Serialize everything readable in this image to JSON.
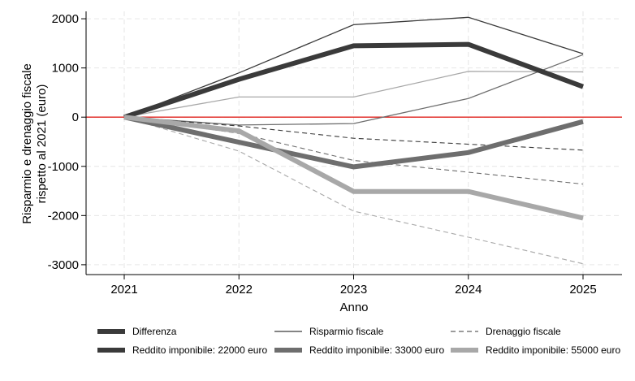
{
  "chart_data": {
    "type": "line",
    "xlabel": "Anno",
    "ylabel_lines": [
      "Risparmio e drenaggio fiscale",
      "rispetto al 2021 (euro)"
    ],
    "x": [
      2021,
      2022,
      2023,
      2024,
      2025
    ],
    "x_ticks": [
      "2021",
      "2022",
      "2023",
      "2024",
      "2025"
    ],
    "y_ticks": [
      2000,
      1000,
      0,
      -1000,
      -2000,
      -3000
    ],
    "y_tick_labels": [
      "2000",
      "1000",
      "0",
      "-1000",
      "-2000",
      "-3000"
    ],
    "ylim": [
      -3200,
      2150
    ],
    "grid": true,
    "reference_line": {
      "y": 0,
      "color": "#e0201b"
    },
    "legend": {
      "placement": "bottom",
      "entries": [
        {
          "label": "Differenza",
          "style": "thick",
          "color": "#3a3a3a"
        },
        {
          "label": "Risparmio fiscale",
          "style": "thin",
          "color": "#3a3a3a"
        },
        {
          "label": "Drenaggio fiscale",
          "style": "dashed",
          "color": "#3a3a3a"
        },
        {
          "label": "Reddito imponibile: 22000 euro",
          "style": "thick",
          "color": "#3a3a3a"
        },
        {
          "label": "Reddito imponibile: 33000 euro",
          "style": "thick",
          "color": "#6e6e6e"
        },
        {
          "label": "Reddito imponibile: 55000 euro",
          "style": "thick",
          "color": "#a8a8a8"
        }
      ]
    },
    "series": [
      {
        "income": "22000",
        "measure": "Risparmio fiscale",
        "style": "thin",
        "color": "#3a3a3a",
        "values": [
          0,
          900,
          1880,
          2030,
          1290
        ]
      },
      {
        "income": "22000",
        "measure": "Drenaggio fiscale",
        "style": "dashed",
        "color": "#3a3a3a",
        "values": [
          0,
          -180,
          -430,
          -550,
          -670
        ]
      },
      {
        "income": "22000",
        "measure": "Differenza",
        "style": "thick",
        "color": "#3a3a3a",
        "values": [
          0,
          770,
          1450,
          1480,
          620
        ]
      },
      {
        "income": "33000",
        "measure": "Risparmio fiscale",
        "style": "thin",
        "color": "#6e6e6e",
        "values": [
          0,
          -160,
          -130,
          380,
          1270
        ]
      },
      {
        "income": "33000",
        "measure": "Drenaggio fiscale",
        "style": "dashed",
        "color": "#6e6e6e",
        "values": [
          0,
          -330,
          -880,
          -1120,
          -1360
        ]
      },
      {
        "income": "33000",
        "measure": "Differenza",
        "style": "thick",
        "color": "#6e6e6e",
        "values": [
          0,
          -510,
          -1010,
          -720,
          -90
        ]
      },
      {
        "income": "55000",
        "measure": "Risparmio fiscale",
        "style": "thin",
        "color": "#a8a8a8",
        "values": [
          0,
          410,
          410,
          930,
          920
        ]
      },
      {
        "income": "55000",
        "measure": "Drenaggio fiscale",
        "style": "dashed",
        "color": "#a8a8a8",
        "values": [
          0,
          -690,
          -1910,
          -2440,
          -2980
        ]
      },
      {
        "income": "55000",
        "measure": "Differenza",
        "style": "thick",
        "color": "#a8a8a8",
        "values": [
          0,
          -280,
          -1510,
          -1510,
          -2050
        ]
      }
    ]
  }
}
